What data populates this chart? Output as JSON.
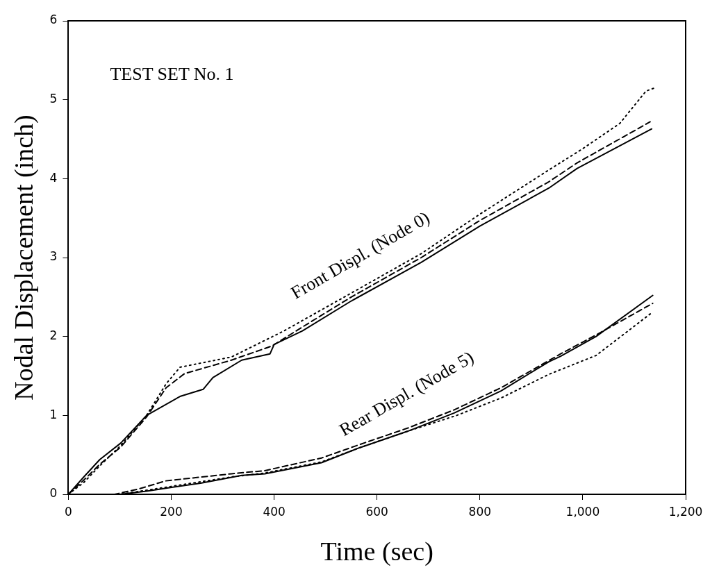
{
  "chart_data": {
    "type": "line",
    "title": "TEST SET No. 1",
    "xlabel": "Time (sec)",
    "ylabel": "Nodal Displacement (inch)",
    "xlim": [
      0,
      1200
    ],
    "ylim": [
      0,
      6
    ],
    "xticks": [
      0,
      200,
      400,
      600,
      800,
      {
        "value": 1000,
        "label": "1,000"
      },
      {
        "value": 1200,
        "label": "1,200"
      }
    ],
    "yticks": [
      0,
      1,
      2,
      3,
      4,
      5,
      6
    ],
    "grid": false,
    "legend": false,
    "marker": "none",
    "annotations": [
      "Front Displ. (Node 0)",
      "Rear Displ. (Node 5)"
    ],
    "series": [
      {
        "color": "#000000",
        "line_style": "solid",
        "x": [
          0,
          30,
          61,
          102,
          152,
          217,
          262,
          281,
          337,
          392,
          400,
          455,
          550,
          686,
          800,
          934,
          989,
          1134
        ],
        "values": [
          0,
          0.22,
          0.44,
          0.65,
          1.0,
          1.24,
          1.33,
          1.48,
          1.7,
          1.78,
          1.9,
          2.07,
          2.45,
          2.94,
          3.4,
          3.88,
          4.13,
          4.63
        ]
      },
      {
        "color": "#000000",
        "line_style": "dashed",
        "x": [
          0,
          30,
          61,
          102,
          152,
          190,
          226,
          317,
          396,
          455,
          550,
          686,
          800,
          934,
          989,
          1131
        ],
        "values": [
          0,
          0.18,
          0.38,
          0.6,
          0.98,
          1.35,
          1.53,
          1.7,
          1.88,
          2.12,
          2.5,
          3.0,
          3.47,
          3.96,
          4.2,
          4.72
        ]
      },
      {
        "color": "#000000",
        "line_style": "dotted",
        "x": [
          0,
          30,
          61,
          102,
          152,
          190,
          217,
          317,
          419,
          550,
          686,
          800,
          934,
          1000,
          1072,
          1123,
          1140
        ],
        "values": [
          0,
          0.15,
          0.36,
          0.62,
          1.0,
          1.4,
          1.61,
          1.74,
          2.07,
          2.55,
          3.05,
          3.55,
          4.11,
          4.38,
          4.7,
          5.11,
          5.15
        ]
      },
      {
        "color": "#000000",
        "line_style": "solid",
        "x": [
          0,
          100,
          152,
          203,
          257,
          337,
          382,
          492,
          566,
          660,
          750,
          841,
          934,
          957,
          1026,
          1136
        ],
        "values": [
          0,
          0,
          0.04,
          0.09,
          0.14,
          0.24,
          0.26,
          0.4,
          0.59,
          0.8,
          1.03,
          1.31,
          1.68,
          1.75,
          2.0,
          2.52
        ]
      },
      {
        "color": "#000000",
        "line_style": "dashed",
        "x": [
          0,
          90,
          138,
          189,
          317,
          382,
          492,
          566,
          660,
          750,
          841,
          957,
          1026,
          1136
        ],
        "values": [
          0,
          0,
          0.07,
          0.17,
          0.26,
          0.3,
          0.46,
          0.63,
          0.84,
          1.07,
          1.35,
          1.78,
          2.02,
          2.42
        ]
      },
      {
        "color": "#000000",
        "line_style": "dotted",
        "x": [
          0,
          100,
          150,
          200,
          317,
          382,
          492,
          566,
          660,
          755,
          841,
          934,
          1026,
          1136
        ],
        "values": [
          0,
          0,
          0.05,
          0.1,
          0.22,
          0.27,
          0.41,
          0.59,
          0.8,
          1.0,
          1.22,
          1.52,
          1.76,
          2.31
        ]
      }
    ]
  }
}
